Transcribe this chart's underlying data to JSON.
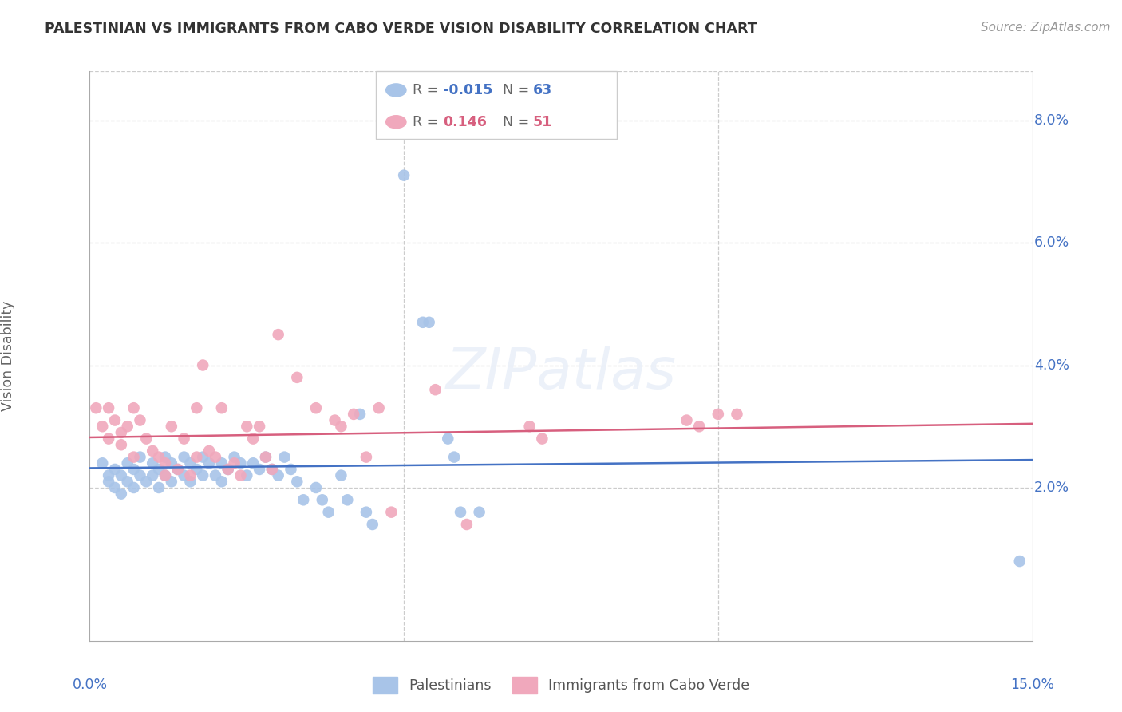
{
  "title": "PALESTINIAN VS IMMIGRANTS FROM CABO VERDE VISION DISABILITY CORRELATION CHART",
  "source": "Source: ZipAtlas.com",
  "ylabel": "Vision Disability",
  "xlim": [
    0.0,
    0.15
  ],
  "ylim": [
    -0.005,
    0.088
  ],
  "yticks": [
    0.02,
    0.04,
    0.06,
    0.08
  ],
  "ytick_labels": [
    "2.0%",
    "4.0%",
    "6.0%",
    "8.0%"
  ],
  "legend_blue_r": "-0.015",
  "legend_blue_n": "63",
  "legend_pink_r": "0.146",
  "legend_pink_n": "51",
  "blue_color": "#a8c4e8",
  "pink_color": "#f0a8bc",
  "blue_line_color": "#4472c4",
  "pink_line_color": "#d75f7e",
  "grid_color": "#cccccc",
  "text_color": "#4472c4",
  "label_color": "#666666",
  "blue_scatter": [
    [
      0.002,
      0.024
    ],
    [
      0.003,
      0.022
    ],
    [
      0.003,
      0.021
    ],
    [
      0.004,
      0.023
    ],
    [
      0.004,
      0.02
    ],
    [
      0.005,
      0.022
    ],
    [
      0.005,
      0.019
    ],
    [
      0.006,
      0.024
    ],
    [
      0.006,
      0.021
    ],
    [
      0.007,
      0.023
    ],
    [
      0.007,
      0.02
    ],
    [
      0.008,
      0.025
    ],
    [
      0.008,
      0.022
    ],
    [
      0.009,
      0.021
    ],
    [
      0.01,
      0.024
    ],
    [
      0.01,
      0.022
    ],
    [
      0.011,
      0.023
    ],
    [
      0.011,
      0.02
    ],
    [
      0.012,
      0.025
    ],
    [
      0.012,
      0.022
    ],
    [
      0.013,
      0.024
    ],
    [
      0.013,
      0.021
    ],
    [
      0.014,
      0.023
    ],
    [
      0.015,
      0.025
    ],
    [
      0.015,
      0.022
    ],
    [
      0.016,
      0.024
    ],
    [
      0.016,
      0.021
    ],
    [
      0.017,
      0.023
    ],
    [
      0.018,
      0.025
    ],
    [
      0.018,
      0.022
    ],
    [
      0.019,
      0.024
    ],
    [
      0.02,
      0.022
    ],
    [
      0.021,
      0.024
    ],
    [
      0.021,
      0.021
    ],
    [
      0.022,
      0.023
    ],
    [
      0.023,
      0.025
    ],
    [
      0.024,
      0.024
    ],
    [
      0.025,
      0.022
    ],
    [
      0.026,
      0.024
    ],
    [
      0.027,
      0.023
    ],
    [
      0.028,
      0.025
    ],
    [
      0.029,
      0.023
    ],
    [
      0.03,
      0.022
    ],
    [
      0.031,
      0.025
    ],
    [
      0.032,
      0.023
    ],
    [
      0.033,
      0.021
    ],
    [
      0.034,
      0.018
    ],
    [
      0.036,
      0.02
    ],
    [
      0.037,
      0.018
    ],
    [
      0.038,
      0.016
    ],
    [
      0.04,
      0.022
    ],
    [
      0.041,
      0.018
    ],
    [
      0.043,
      0.032
    ],
    [
      0.044,
      0.016
    ],
    [
      0.045,
      0.014
    ],
    [
      0.05,
      0.071
    ],
    [
      0.053,
      0.047
    ],
    [
      0.054,
      0.047
    ],
    [
      0.057,
      0.028
    ],
    [
      0.058,
      0.025
    ],
    [
      0.059,
      0.016
    ],
    [
      0.062,
      0.016
    ],
    [
      0.148,
      0.008
    ]
  ],
  "pink_scatter": [
    [
      0.001,
      0.033
    ],
    [
      0.002,
      0.03
    ],
    [
      0.003,
      0.033
    ],
    [
      0.003,
      0.028
    ],
    [
      0.004,
      0.031
    ],
    [
      0.005,
      0.029
    ],
    [
      0.005,
      0.027
    ],
    [
      0.006,
      0.03
    ],
    [
      0.007,
      0.033
    ],
    [
      0.007,
      0.025
    ],
    [
      0.008,
      0.031
    ],
    [
      0.009,
      0.028
    ],
    [
      0.01,
      0.026
    ],
    [
      0.011,
      0.025
    ],
    [
      0.012,
      0.024
    ],
    [
      0.012,
      0.022
    ],
    [
      0.013,
      0.03
    ],
    [
      0.014,
      0.023
    ],
    [
      0.015,
      0.028
    ],
    [
      0.016,
      0.022
    ],
    [
      0.017,
      0.033
    ],
    [
      0.017,
      0.025
    ],
    [
      0.018,
      0.04
    ],
    [
      0.019,
      0.026
    ],
    [
      0.02,
      0.025
    ],
    [
      0.021,
      0.033
    ],
    [
      0.022,
      0.023
    ],
    [
      0.023,
      0.024
    ],
    [
      0.024,
      0.022
    ],
    [
      0.025,
      0.03
    ],
    [
      0.026,
      0.028
    ],
    [
      0.027,
      0.03
    ],
    [
      0.028,
      0.025
    ],
    [
      0.029,
      0.023
    ],
    [
      0.03,
      0.045
    ],
    [
      0.033,
      0.038
    ],
    [
      0.036,
      0.033
    ],
    [
      0.039,
      0.031
    ],
    [
      0.04,
      0.03
    ],
    [
      0.042,
      0.032
    ],
    [
      0.044,
      0.025
    ],
    [
      0.046,
      0.033
    ],
    [
      0.048,
      0.016
    ],
    [
      0.055,
      0.036
    ],
    [
      0.06,
      0.014
    ],
    [
      0.07,
      0.03
    ],
    [
      0.072,
      0.028
    ],
    [
      0.095,
      0.031
    ],
    [
      0.097,
      0.03
    ],
    [
      0.1,
      0.032
    ],
    [
      0.103,
      0.032
    ]
  ]
}
